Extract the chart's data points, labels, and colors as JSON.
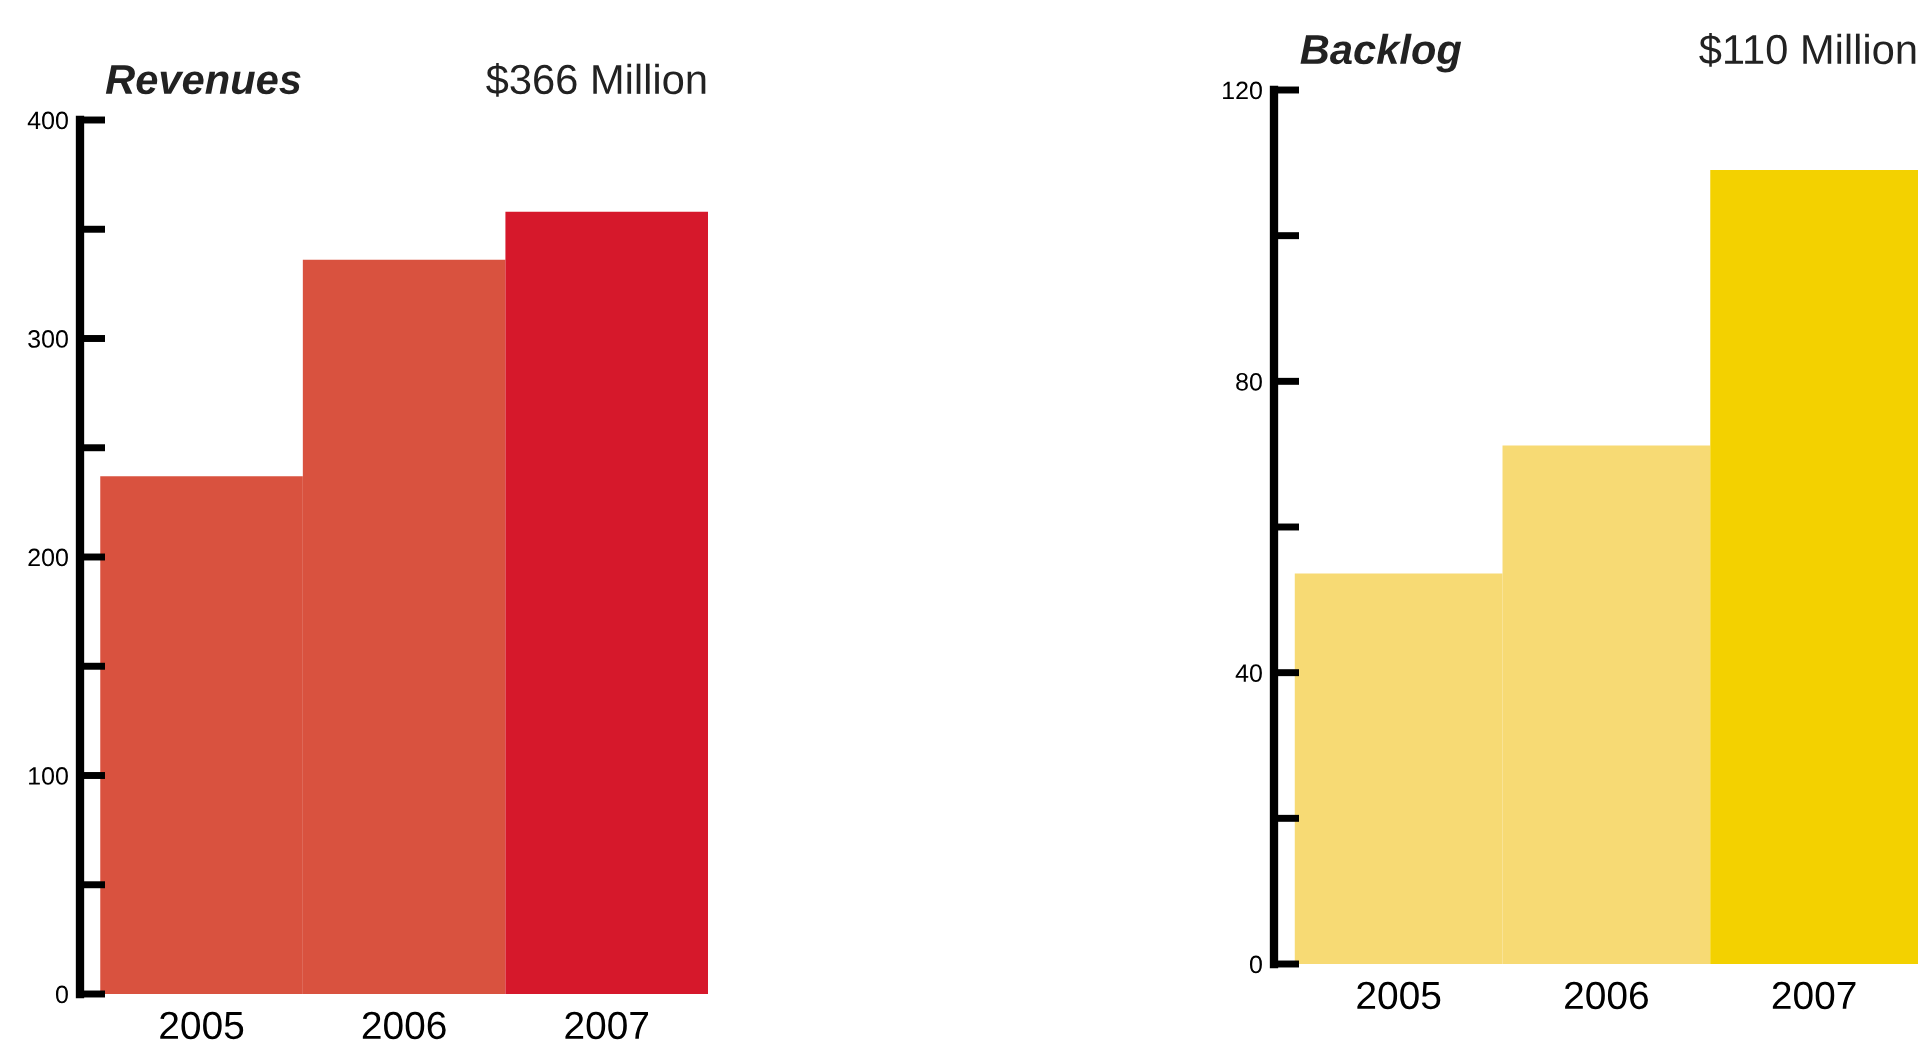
{
  "chart_data": [
    {
      "type": "bar",
      "title": "Revenues",
      "subtitle": "$366 Million",
      "categories": [
        "2005",
        "2006",
        "2007"
      ],
      "values": [
        237,
        336,
        358
      ],
      "colors": [
        "#d9523f",
        "#d9523f",
        "#d6182b"
      ],
      "ylim": [
        0,
        400
      ],
      "yticks": [
        0,
        {
          "value": 50,
          "label": null
        },
        100,
        {
          "value": 150,
          "label": null
        },
        200,
        {
          "value": 250,
          "label": null
        },
        300,
        {
          "value": 350,
          "label": null
        },
        400
      ],
      "grid": false,
      "legend": false
    },
    {
      "type": "bar",
      "title": "Backlog",
      "subtitle": "$110 Million",
      "categories": [
        "2005",
        "2006",
        "2007"
      ],
      "values": [
        53.6,
        71.2,
        109
      ],
      "colors": [
        "#f7da74",
        "#f7da74",
        "#f3d100"
      ],
      "ylim": [
        0,
        120
      ],
      "yticks": [
        0,
        {
          "value": 20,
          "label": null
        },
        40,
        {
          "value": 60,
          "label": null
        },
        80,
        {
          "value": 100,
          "label": null
        },
        120
      ],
      "grid": false,
      "legend": false
    }
  ]
}
